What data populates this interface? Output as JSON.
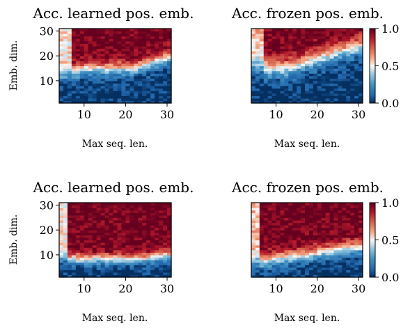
{
  "chart_data": [
    {
      "type": "heatmap",
      "title": "Acc. learned pos. emb.",
      "xlabel": "Max seq. len.",
      "ylabel": "Emb. dim.",
      "xlim": [
        4,
        31
      ],
      "ylim": [
        1,
        31
      ],
      "xticks": [
        10,
        20,
        30
      ],
      "yticks": [
        10,
        20,
        30
      ],
      "colorscale": "RdBu_r",
      "value_range": [
        0.0,
        1.0
      ],
      "pattern": "high accuracy (≈1.0) for embedding dims above ~17 and seq. len. 8–28; low accuracy (≈0) for small embedding dims"
    },
    {
      "type": "heatmap",
      "title": "Acc. frozen pos. emb.",
      "xlabel": "Max seq. len.",
      "ylabel": "",
      "xlim": [
        4,
        31
      ],
      "ylim": [
        1,
        31
      ],
      "xticks": [
        10,
        20,
        30
      ],
      "yticks": [],
      "colorscale": "RdBu_r",
      "value_range": [
        0.0,
        1.0
      ],
      "colorbar_ticks": [
        0.0,
        0.5,
        1.0
      ],
      "pattern": "high accuracy only at large embedding dims and short-to-medium seq. len.; blue below ~15 emb. dim."
    },
    {
      "type": "heatmap",
      "title": "Acc. learned pos. emb.",
      "xlabel": "Max seq. len.",
      "ylabel": "Emb. dim.",
      "xlim": [
        4,
        31
      ],
      "ylim": [
        1,
        31
      ],
      "xticks": [
        10,
        20,
        30
      ],
      "yticks": [
        10,
        20,
        30
      ],
      "colorscale": "RdBu_r",
      "value_range": [
        0.0,
        1.0
      ],
      "pattern": "accuracy ≈1.0 across most of the grid above emb. dim ~10; low only at small emb. dim or very short seq. len."
    },
    {
      "type": "heatmap",
      "title": "Acc. frozen pos. emb.",
      "xlabel": "Max seq. len.",
      "ylabel": "",
      "xlim": [
        4,
        31
      ],
      "ylim": [
        1,
        31
      ],
      "xticks": [
        10,
        20,
        30
      ],
      "yticks": [],
      "colorscale": "RdBu_r",
      "value_range": [
        0.0,
        1.0
      ],
      "colorbar_ticks": [
        0.0,
        0.5,
        1.0
      ],
      "pattern": "accuracy ≈1.0 above emb. dim ~13; boundary rises with seq. len."
    }
  ],
  "colors": {
    "high": "#67001f",
    "mid": "#f7f7f7",
    "low": "#053061"
  }
}
